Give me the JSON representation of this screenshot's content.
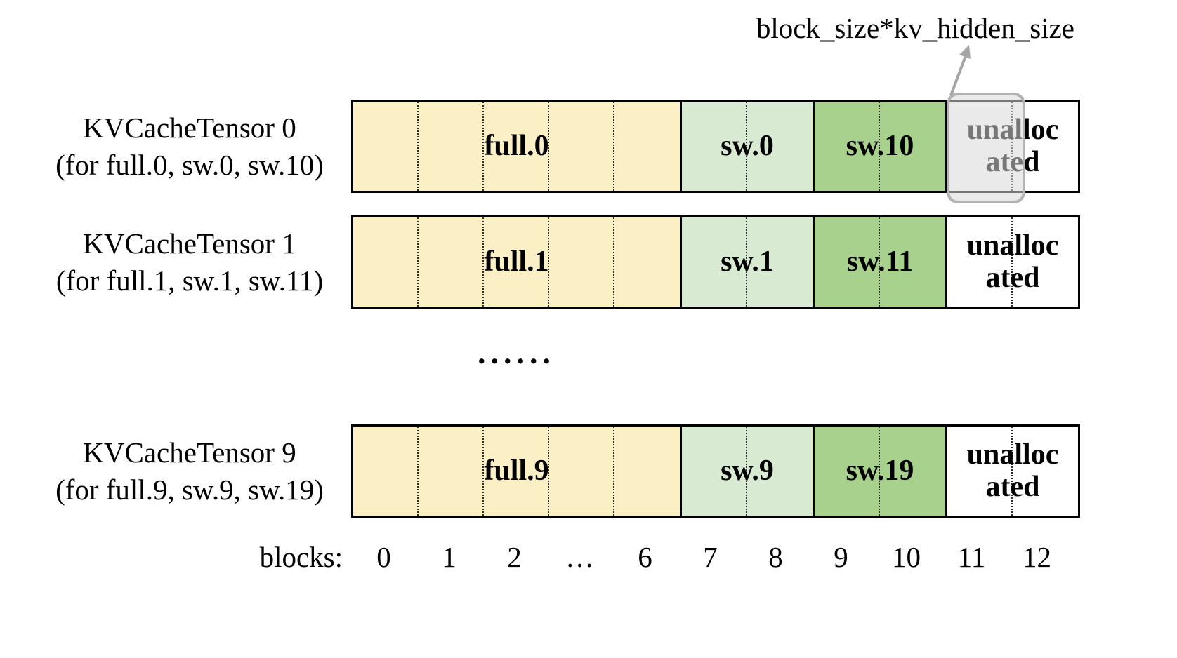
{
  "annotation": {
    "label": "block_size*kv_hidden_size",
    "arrow_color": "#a6a6a6"
  },
  "rows": [
    {
      "title": "KVCacheTensor 0",
      "subtitle": "(for full.0, sw.0, sw.10)",
      "highlighted": true,
      "segments": [
        {
          "label": "full.0",
          "color": "#FBEFC6",
          "cells": 5
        },
        {
          "label": "sw.0",
          "color": "#D9EAD3",
          "cells": 2
        },
        {
          "label": "sw.10",
          "color": "#A9D18E",
          "cells": 2
        },
        {
          "label": "unallocated",
          "color": "#FFFFFF",
          "cells": 2
        }
      ]
    },
    {
      "title": "KVCacheTensor 1",
      "subtitle": "(for full.1, sw.1, sw.11)",
      "highlighted": false,
      "segments": [
        {
          "label": "full.1",
          "color": "#FBEFC6",
          "cells": 5
        },
        {
          "label": "sw.1",
          "color": "#D9EAD3",
          "cells": 2
        },
        {
          "label": "sw.11",
          "color": "#A9D18E",
          "cells": 2
        },
        {
          "label": "unallocated",
          "color": "#FFFFFF",
          "cells": 2
        }
      ]
    },
    {
      "title": "KVCacheTensor 9",
      "subtitle": "(for full.9, sw.9, sw.19)",
      "highlighted": false,
      "segments": [
        {
          "label": "full.9",
          "color": "#FBEFC6",
          "cells": 5
        },
        {
          "label": "sw.9",
          "color": "#D9EAD3",
          "cells": 2
        },
        {
          "label": "sw.19",
          "color": "#A9D18E",
          "cells": 2
        },
        {
          "label": "unallocated",
          "color": "#FFFFFF",
          "cells": 2
        }
      ]
    }
  ],
  "ellipsis": "......",
  "axis": {
    "label": "blocks:",
    "ticks": [
      "0",
      "1",
      "2",
      "…",
      "6",
      "7",
      "8",
      "9",
      "10",
      "11",
      "12"
    ]
  }
}
